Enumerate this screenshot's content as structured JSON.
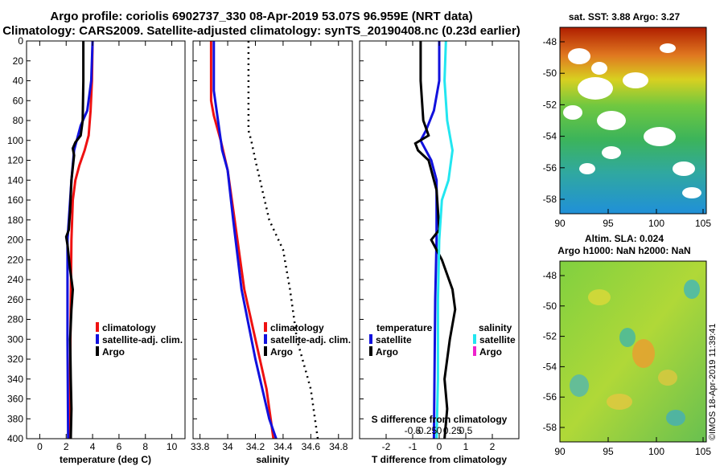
{
  "title_line1": "Argo profile: coriolis 6902737_330 08-Apr-2019 53.07S 96.959E (NRT data)",
  "title_line2": "Climatology: CARS2009. Satellite-adjusted climatology: synTS_20190408.nc (0.23d earlier)",
  "colors": {
    "climatology": "#ee1111",
    "satellite": "#1111dd",
    "argo": "#000000",
    "sal_satellite": "#22e6f0",
    "sal_argo": "#ee22cc"
  },
  "chart_data": [
    {
      "id": "temperature",
      "type": "line",
      "xlabel": "temperature (deg C)",
      "xlim": [
        -1,
        11
      ],
      "ylim": [
        0,
        400
      ],
      "y_inverted": true,
      "x_ticks": [
        "0",
        "2",
        "4",
        "6",
        "8",
        "10"
      ],
      "x_tick_values": [
        0,
        2,
        4,
        6,
        8,
        10
      ],
      "y_ticks": [
        "0",
        "20",
        "40",
        "60",
        "80",
        "100",
        "120",
        "140",
        "160",
        "180",
        "200",
        "220",
        "240",
        "260",
        "280",
        "300",
        "320",
        "340",
        "360",
        "380",
        "400"
      ],
      "y_tick_values": [
        0,
        20,
        40,
        60,
        80,
        100,
        120,
        140,
        160,
        180,
        200,
        220,
        240,
        260,
        280,
        300,
        320,
        340,
        360,
        380,
        400
      ],
      "legend": [
        "climatology",
        "satellite-adj. clim.",
        "Argo"
      ],
      "series": [
        {
          "name": "climatology",
          "color_key": "climatology",
          "style": "solid",
          "points": [
            [
              4.0,
              0
            ],
            [
              3.95,
              40
            ],
            [
              3.85,
              70
            ],
            [
              3.7,
              95
            ],
            [
              3.4,
              110
            ],
            [
              3.0,
              125
            ],
            [
              2.7,
              140
            ],
            [
              2.5,
              160
            ],
            [
              2.4,
              200
            ],
            [
              2.35,
              260
            ],
            [
              2.3,
              330
            ],
            [
              2.3,
              400
            ]
          ]
        },
        {
          "name": "satellite-adj. clim.",
          "color_key": "satellite",
          "style": "solid",
          "points": [
            [
              4.0,
              0
            ],
            [
              3.9,
              40
            ],
            [
              3.6,
              70
            ],
            [
              3.1,
              85
            ],
            [
              2.6,
              110
            ],
            [
              2.4,
              140
            ],
            [
              2.3,
              160
            ],
            [
              2.1,
              200
            ],
            [
              2.1,
              300
            ],
            [
              2.15,
              400
            ]
          ]
        },
        {
          "name": "Argo",
          "color_key": "argo",
          "style": "solid",
          "points": [
            [
              3.3,
              0
            ],
            [
              3.3,
              40
            ],
            [
              3.25,
              80
            ],
            [
              3.1,
              95
            ],
            [
              2.7,
              102
            ],
            [
              2.5,
              108
            ],
            [
              2.6,
              115
            ],
            [
              2.4,
              140
            ],
            [
              2.3,
              170
            ],
            [
              2.2,
              190
            ],
            [
              2.0,
              197
            ],
            [
              2.1,
              205
            ],
            [
              2.3,
              230
            ],
            [
              2.5,
              250
            ],
            [
              2.4,
              270
            ],
            [
              2.3,
              300
            ],
            [
              2.35,
              340
            ],
            [
              2.4,
              370
            ],
            [
              2.35,
              400
            ]
          ]
        }
      ]
    },
    {
      "id": "salinity",
      "type": "line",
      "xlabel": "salinity",
      "xlim": [
        33.75,
        34.9
      ],
      "ylim": [
        0,
        400
      ],
      "y_inverted": true,
      "x_ticks": [
        "33.8",
        "34",
        "34.2",
        "34.4",
        "34.6",
        "34.8"
      ],
      "x_tick_values": [
        33.8,
        34.0,
        34.2,
        34.4,
        34.6,
        34.8
      ],
      "legend": [
        "climatology",
        "satellite-adj. clim.",
        "Argo"
      ],
      "series": [
        {
          "name": "climatology",
          "color_key": "climatology",
          "style": "solid",
          "points": [
            [
              33.88,
              0
            ],
            [
              33.88,
              60
            ],
            [
              33.9,
              75
            ],
            [
              33.95,
              100
            ],
            [
              34.0,
              130
            ],
            [
              34.05,
              180
            ],
            [
              34.12,
              250
            ],
            [
              34.2,
              300
            ],
            [
              34.28,
              350
            ],
            [
              34.33,
              400
            ]
          ]
        },
        {
          "name": "satellite-adj. clim.",
          "color_key": "satellite",
          "style": "solid",
          "points": [
            [
              33.9,
              0
            ],
            [
              33.9,
              50
            ],
            [
              33.93,
              80
            ],
            [
              33.96,
              110
            ],
            [
              34.0,
              130
            ],
            [
              34.04,
              180
            ],
            [
              34.1,
              250
            ],
            [
              34.2,
              320
            ],
            [
              34.3,
              380
            ],
            [
              34.35,
              400
            ]
          ]
        },
        {
          "name": "Argo",
          "color_key": "argo",
          "style": "dotted",
          "points": [
            [
              34.15,
              0
            ],
            [
              34.15,
              90
            ],
            [
              34.17,
              100
            ],
            [
              34.2,
              120
            ],
            [
              34.25,
              150
            ],
            [
              34.3,
              180
            ],
            [
              34.4,
              210
            ],
            [
              34.45,
              250
            ],
            [
              34.5,
              300
            ],
            [
              34.6,
              350
            ],
            [
              34.65,
              400
            ]
          ]
        }
      ]
    },
    {
      "id": "difference",
      "type": "line",
      "xlabel": "T difference from climatology",
      "xlim": [
        -3,
        3
      ],
      "s_scale": 0.25,
      "ylim": [
        0,
        400
      ],
      "y_inverted": true,
      "x_ticks": [
        "-2",
        "-1",
        "0",
        "1",
        "2"
      ],
      "x_tick_values": [
        -2,
        -1,
        0,
        1,
        2
      ],
      "s_label": "S difference from climatology",
      "s_ticks": [
        "-0.5",
        "-0.25",
        "0",
        "0.25",
        "0.5"
      ],
      "s_tick_values": [
        -0.5,
        -0.25,
        0,
        0.25,
        0.5
      ],
      "legend_temperature": {
        "title": "temperature",
        "items": [
          "satellite",
          "Argo"
        ]
      },
      "legend_salinity": {
        "title": "salinity",
        "items": [
          "satellite",
          "Argo"
        ]
      },
      "series": [
        {
          "name": "T satellite",
          "color_key": "satellite",
          "points": [
            [
              0.0,
              0
            ],
            [
              0.0,
              40
            ],
            [
              -0.2,
              70
            ],
            [
              -0.5,
              90
            ],
            [
              -0.7,
              100
            ],
            [
              -0.3,
              120
            ],
            [
              -0.1,
              140
            ],
            [
              -0.1,
              200
            ],
            [
              -0.15,
              260
            ],
            [
              -0.2,
              400
            ]
          ]
        },
        {
          "name": "T Argo",
          "color_key": "argo",
          "points": [
            [
              -0.7,
              0
            ],
            [
              -0.7,
              40
            ],
            [
              -0.6,
              80
            ],
            [
              -0.4,
              95
            ],
            [
              -0.9,
              103
            ],
            [
              -0.8,
              110
            ],
            [
              -0.4,
              120
            ],
            [
              -0.1,
              150
            ],
            [
              0.0,
              190
            ],
            [
              -0.3,
              200
            ],
            [
              0.1,
              220
            ],
            [
              0.5,
              250
            ],
            [
              0.6,
              270
            ],
            [
              0.4,
              300
            ],
            [
              0.2,
              340
            ],
            [
              0.3,
              370
            ],
            [
              0.2,
              400
            ]
          ]
        },
        {
          "name": "S satellite",
          "color_key": "sal_satellite",
          "points": [
            [
              0.25,
              0
            ],
            [
              0.2,
              40
            ],
            [
              0.3,
              80
            ],
            [
              0.5,
              110
            ],
            [
              0.35,
              140
            ],
            [
              0.1,
              160
            ],
            [
              0.0,
              200
            ],
            [
              -0.05,
              260
            ],
            [
              -0.05,
              340
            ],
            [
              -0.1,
              400
            ]
          ]
        }
      ]
    }
  ],
  "maps": {
    "sst": {
      "title": "sat. SST: 3.88 Argo: 3.27",
      "y_ticks": [
        "-48",
        "-50",
        "-52",
        "-54",
        "-56",
        "-58"
      ],
      "x_ticks": [
        "90",
        "95",
        "100",
        "105"
      ]
    },
    "sla": {
      "title1": "Altim. SLA: 0.024",
      "title2": "Argo h1000: NaN h2000: NaN",
      "y_ticks": [
        "-48",
        "-50",
        "-52",
        "-54",
        "-56",
        "-58"
      ],
      "x_ticks": [
        "90",
        "95",
        "100",
        "105"
      ]
    }
  },
  "imos_stamp": "©IMOS 18-Apr-2019 11:39:41"
}
